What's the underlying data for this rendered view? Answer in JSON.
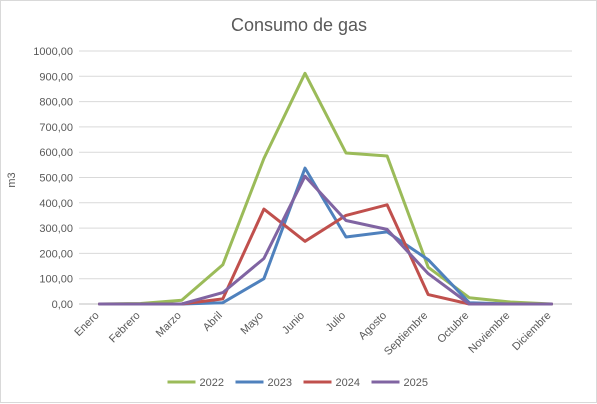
{
  "chart_data": {
    "type": "line",
    "title": "Consumo de gas",
    "xlabel": "",
    "ylabel": "m3",
    "ylim": [
      0,
      1000
    ],
    "ytick_step": 100,
    "ytick_labels": [
      "0,00",
      "100,00",
      "200,00",
      "300,00",
      "400,00",
      "500,00",
      "600,00",
      "700,00",
      "800,00",
      "900,00",
      "1000,00"
    ],
    "grid": true,
    "legend_position": "bottom",
    "categories": [
      "Enero",
      "Febrero",
      "Marzo",
      "Abril",
      "Mayo",
      "Junio",
      "Julio",
      "Agosto",
      "Septiembre",
      "Octubre",
      "Noviembre",
      "Diciembre"
    ],
    "series": [
      {
        "name": "2022",
        "color": "#9BBB59",
        "values": [
          0,
          2,
          15,
          155,
          575,
          912,
          597,
          585,
          145,
          25,
          8,
          0
        ]
      },
      {
        "name": "2023",
        "color": "#4F81BD",
        "values": [
          0,
          0,
          0,
          5,
          100,
          537,
          265,
          285,
          175,
          5,
          0,
          0
        ]
      },
      {
        "name": "2024",
        "color": "#C0504D",
        "values": [
          0,
          0,
          0,
          20,
          375,
          248,
          350,
          392,
          37,
          0,
          0,
          0
        ]
      },
      {
        "name": "2025",
        "color": "#8064A2",
        "values": [
          0,
          0,
          0,
          45,
          180,
          505,
          330,
          295,
          120,
          0,
          0,
          0
        ]
      }
    ]
  }
}
